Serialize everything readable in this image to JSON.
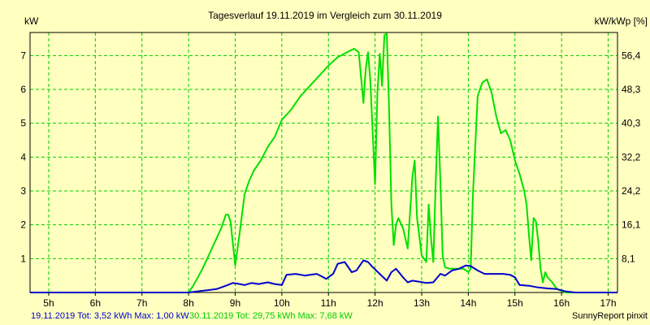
{
  "chart_data": {
    "type": "line",
    "title": "Tagesverlauf 19.11.2019 im Vergleich zum 30.11.2019",
    "ylabel": "kW",
    "ylabel_right": "kW/kWp [%]",
    "x_ticks": [
      "5h",
      "6h",
      "7h",
      "8h",
      "9h",
      "10h",
      "11h",
      "12h",
      "13h",
      "14h",
      "15h",
      "16h",
      "17h"
    ],
    "xlim": [
      4.6,
      17.2
    ],
    "ylim": [
      0,
      7.68
    ],
    "y_ticks": [
      1,
      2,
      3,
      4,
      5,
      6,
      7
    ],
    "y_ticks_right": [
      "8,1",
      "16,1",
      "24,2",
      "32,2",
      "40,3",
      "48,3",
      "56,4"
    ],
    "grid": true,
    "series": [
      {
        "name": "19.11.2019",
        "color": "#0000CC",
        "x": [
          4.6,
          8.0,
          8.3,
          8.6,
          8.8,
          8.95,
          9.1,
          9.2,
          9.35,
          9.5,
          9.7,
          9.85,
          10.0,
          10.1,
          10.3,
          10.5,
          10.6,
          10.75,
          10.85,
          10.95,
          11.1,
          11.2,
          11.35,
          11.5,
          11.6,
          11.75,
          11.85,
          11.95,
          12.1,
          12.25,
          12.35,
          12.45,
          12.6,
          12.7,
          12.8,
          12.95,
          13.1,
          13.25,
          13.4,
          13.5,
          13.65,
          13.8,
          13.95,
          14.05,
          14.2,
          14.35,
          14.55,
          14.75,
          14.9,
          15.0,
          15.1,
          15.3,
          15.5,
          15.7,
          15.9,
          16.1,
          16.3,
          17.2
        ],
        "y": [
          0,
          0,
          0.05,
          0.1,
          0.2,
          0.28,
          0.25,
          0.22,
          0.28,
          0.25,
          0.3,
          0.25,
          0.22,
          0.52,
          0.55,
          0.5,
          0.52,
          0.55,
          0.48,
          0.4,
          0.55,
          0.85,
          0.9,
          0.6,
          0.65,
          0.95,
          0.9,
          0.75,
          0.55,
          0.35,
          0.6,
          0.7,
          0.45,
          0.3,
          0.35,
          0.32,
          0.28,
          0.3,
          0.55,
          0.5,
          0.65,
          0.7,
          0.8,
          0.78,
          0.65,
          0.55,
          0.55,
          0.55,
          0.52,
          0.45,
          0.22,
          0.2,
          0.15,
          0.12,
          0.1,
          0.03,
          0,
          0
        ]
      },
      {
        "name": "30.11.2019",
        "color": "#00E000",
        "x": [
          4.6,
          8.0,
          8.1,
          8.3,
          8.5,
          8.7,
          8.8,
          8.85,
          8.9,
          9.0,
          9.1,
          9.2,
          9.3,
          9.4,
          9.55,
          9.7,
          9.85,
          10.0,
          10.2,
          10.4,
          10.6,
          10.8,
          11.0,
          11.2,
          11.4,
          11.55,
          11.65,
          11.75,
          11.8,
          11.85,
          11.9,
          12.0,
          12.05,
          12.1,
          12.15,
          12.2,
          12.25,
          12.3,
          12.35,
          12.4,
          12.45,
          12.5,
          12.6,
          12.7,
          12.8,
          12.85,
          12.9,
          13.0,
          13.1,
          13.15,
          13.2,
          13.25,
          13.3,
          13.35,
          13.4,
          13.45,
          13.5,
          13.6,
          13.7,
          13.8,
          13.9,
          14.0,
          14.05,
          14.1,
          14.2,
          14.3,
          14.4,
          14.5,
          14.6,
          14.7,
          14.8,
          14.9,
          15.0,
          15.1,
          15.2,
          15.25,
          15.3,
          15.35,
          15.4,
          15.45,
          15.5,
          15.55,
          15.6,
          15.65,
          15.7,
          15.8,
          15.9,
          16.0,
          16.1,
          16.3,
          17.2
        ],
        "y": [
          0,
          0,
          0.2,
          0.7,
          1.3,
          1.9,
          2.3,
          2.3,
          2.1,
          0.8,
          1.8,
          2.9,
          3.3,
          3.6,
          3.9,
          4.3,
          4.6,
          5.1,
          5.4,
          5.8,
          6.1,
          6.4,
          6.7,
          6.95,
          7.1,
          7.2,
          7.1,
          5.6,
          6.6,
          7.1,
          6.2,
          3.2,
          5.9,
          7.05,
          6.1,
          7.6,
          7.65,
          5.5,
          2.6,
          1.4,
          2.0,
          2.2,
          1.9,
          1.3,
          3.4,
          3.9,
          2.2,
          1.1,
          0.9,
          2.6,
          1.6,
          0.9,
          3.2,
          5.2,
          3.3,
          1.1,
          0.75,
          0.7,
          0.7,
          0.7,
          0.7,
          0.6,
          0.7,
          2.9,
          5.8,
          6.2,
          6.3,
          5.9,
          5.2,
          4.7,
          4.8,
          4.5,
          3.9,
          3.5,
          3.0,
          2.6,
          1.7,
          0.95,
          2.2,
          2.1,
          1.5,
          0.7,
          0.3,
          0.6,
          0.45,
          0.3,
          0.1,
          0.05,
          0,
          0,
          0
        ]
      }
    ]
  },
  "legend": {
    "s1_label": "19.11.2019 Tot: 3,52 kWh Max: 1,00 kW",
    "s2_label": "30.11.2019 Tot: 29,75 kWh Max: 7,68 kW",
    "credit": "SunnyReport pinxit"
  },
  "colors": {
    "background": "#FFFFC0",
    "grid": "#00CC00",
    "axis": "#000000"
  }
}
